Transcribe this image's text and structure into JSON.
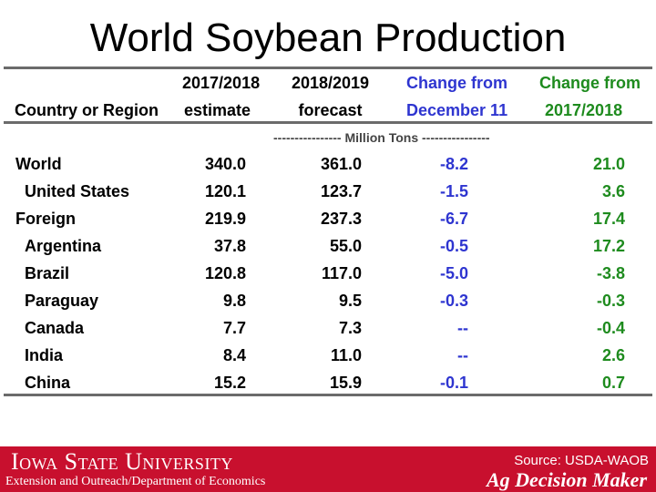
{
  "title": "World Soybean Production",
  "table": {
    "headers": {
      "country": "Country or Region",
      "col1_line1": "2017/2018",
      "col1_line2": "estimate",
      "col2_line1": "2018/2019",
      "col2_line2": "forecast",
      "col3_line1": "Change from",
      "col3_line2": "December 11",
      "col4_line1": "Change from",
      "col4_line2": "2017/2018"
    },
    "units_note": "---------------- Million Tons ----------------",
    "rows": [
      {
        "name": "World",
        "indent": false,
        "v1": "340.0",
        "v2": "361.0",
        "v3": "-8.2",
        "v4": "21.0"
      },
      {
        "name": "United States",
        "indent": true,
        "v1": "120.1",
        "v2": "123.7",
        "v3": "-1.5",
        "v4": "3.6"
      },
      {
        "name": "Foreign",
        "indent": false,
        "v1": "219.9",
        "v2": "237.3",
        "v3": "-6.7",
        "v4": "17.4"
      },
      {
        "name": "Argentina",
        "indent": true,
        "v1": "37.8",
        "v2": "55.0",
        "v3": "-0.5",
        "v4": "17.2"
      },
      {
        "name": "Brazil",
        "indent": true,
        "v1": "120.8",
        "v2": "117.0",
        "v3": "-5.0",
        "v4": "-3.8"
      },
      {
        "name": "Paraguay",
        "indent": true,
        "v1": "9.8",
        "v2": "9.5",
        "v3": "-0.3",
        "v4": "-0.3"
      },
      {
        "name": "Canada",
        "indent": true,
        "v1": "7.7",
        "v2": "7.3",
        "v3": "--",
        "v4": "-0.4"
      },
      {
        "name": "India",
        "indent": true,
        "v1": "8.4",
        "v2": "11.0",
        "v3": "--",
        "v4": "2.6"
      },
      {
        "name": "China",
        "indent": true,
        "v1": "15.2",
        "v2": "15.9",
        "v3": "-0.1",
        "v4": "0.7"
      }
    ]
  },
  "footer": {
    "university": "Iowa State University",
    "department": "Extension and Outreach/Department of Economics",
    "source": "Source: USDA-WAOB",
    "brand": "Ag Decision Maker"
  },
  "colors": {
    "footer_bg": "#c8102e",
    "change_dec": "#2e35d0",
    "change_prev": "#1e8b1e"
  }
}
